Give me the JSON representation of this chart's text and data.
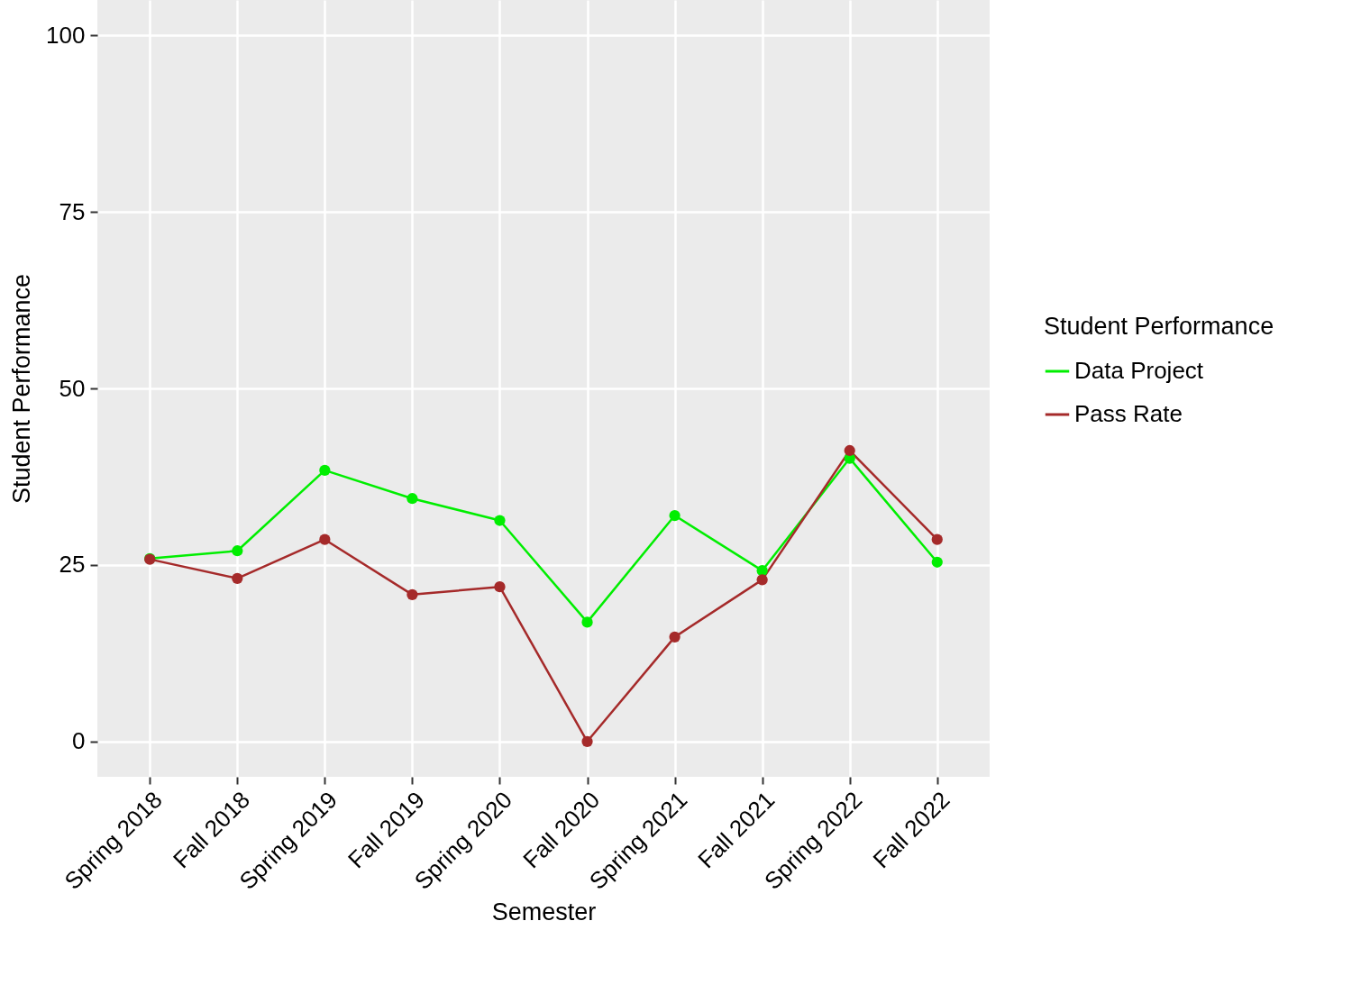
{
  "chart_data": {
    "type": "line",
    "xlabel": "Semester",
    "ylabel": "Student Performance",
    "legend_title": "Student Performance",
    "categories": [
      "Spring 2018",
      "Fall 2018",
      "Spring 2019",
      "Fall 2019",
      "Spring 2020",
      "Fall 2020",
      "Spring 2021",
      "Fall 2021",
      "Spring 2022",
      "Fall 2022"
    ],
    "series": [
      {
        "name": "Data Project",
        "color": "#00ee00",
        "values": [
          25.9,
          27.0,
          38.4,
          34.4,
          31.3,
          16.9,
          32.0,
          24.2,
          40.1,
          25.4
        ]
      },
      {
        "name": "Pass Rate",
        "color": "#a52a2a",
        "values": [
          25.8,
          23.1,
          28.6,
          20.8,
          21.9,
          0,
          14.8,
          22.9,
          41.2,
          28.6
        ]
      }
    ],
    "ylim": [
      -5,
      105
    ],
    "yticks": [
      0,
      25,
      50,
      75,
      100
    ],
    "grid": true,
    "legend": "right",
    "marker": "circle",
    "line_style": "solid"
  }
}
